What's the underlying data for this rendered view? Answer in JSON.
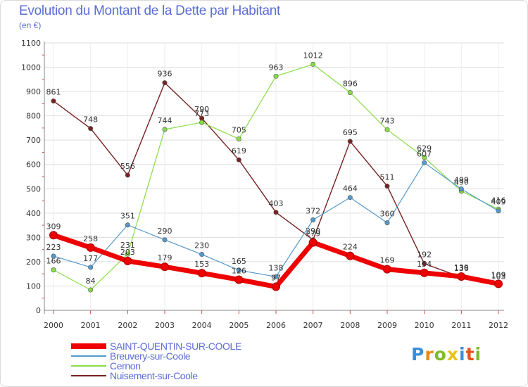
{
  "title": "Evolution du Montant de la Dette par Habitant",
  "unit": "(en €)",
  "logo": {
    "letters": [
      "P",
      "r",
      "o",
      "x",
      "i",
      "t",
      "i"
    ],
    "colors": [
      "#3a8fd6",
      "#e88a1a",
      "#7dbb2a",
      "#e8c21a",
      "#3a8fd6",
      "#e8501a",
      "#7dbb2a"
    ]
  },
  "chart_data": {
    "type": "line",
    "title": "Evolution du Montant de la Dette par Habitant",
    "ylabel": "(en €)",
    "xlabel": "",
    "ylim": [
      0,
      1100
    ],
    "yticks": [
      "0",
      "100",
      "200",
      "300",
      "400",
      "500",
      "600",
      "700",
      "800",
      "900",
      "1000",
      "1100"
    ],
    "categories": [
      "2000",
      "2001",
      "2002",
      "2003",
      "2004",
      "2005",
      "2006",
      "2007",
      "2008",
      "2009",
      "2010",
      "2011",
      "2012"
    ],
    "series": [
      {
        "name": "SAINT-QUENTIN-SUR-COOLE",
        "color": "#ee0000",
        "values": [
          309,
          258,
          203,
          179,
          153,
          126,
          97,
          279,
          224,
          169,
          154,
          139,
          109
        ],
        "labels": [
          "309",
          "258",
          "203",
          "179",
          "153",
          "126",
          "97",
          "279",
          "224",
          "169",
          "154",
          "139",
          "109"
        ]
      },
      {
        "name": "Breuvery-sur-Coole",
        "color": "#5599cc",
        "values": [
          223,
          177,
          351,
          290,
          230,
          165,
          138,
          372,
          464,
          360,
          607,
          499,
          409
        ],
        "labels": [
          "223",
          "177",
          "351",
          "290",
          "230",
          "165",
          "138",
          "372",
          "464",
          "360",
          "607",
          "499",
          "409"
        ]
      },
      {
        "name": "Cernon",
        "color": "#88dd44",
        "values": [
          166,
          84,
          231,
          744,
          773,
          705,
          963,
          1012,
          896,
          743,
          629,
          490,
          416
        ],
        "labels": [
          "166",
          "84",
          "231",
          "744",
          "773",
          "705",
          "963",
          "1012",
          "896",
          "743",
          "629",
          "490",
          "416"
        ]
      },
      {
        "name": "Nuisement-sur-Coole",
        "color": "#772222",
        "values": [
          861,
          748,
          556,
          936,
          790,
          619,
          403,
          290,
          695,
          511,
          192,
          136,
          103
        ],
        "labels": [
          "861",
          "748",
          "556",
          "936",
          "790",
          "619",
          "403",
          "290",
          "695",
          "511",
          "192",
          "136",
          "103"
        ]
      }
    ]
  }
}
